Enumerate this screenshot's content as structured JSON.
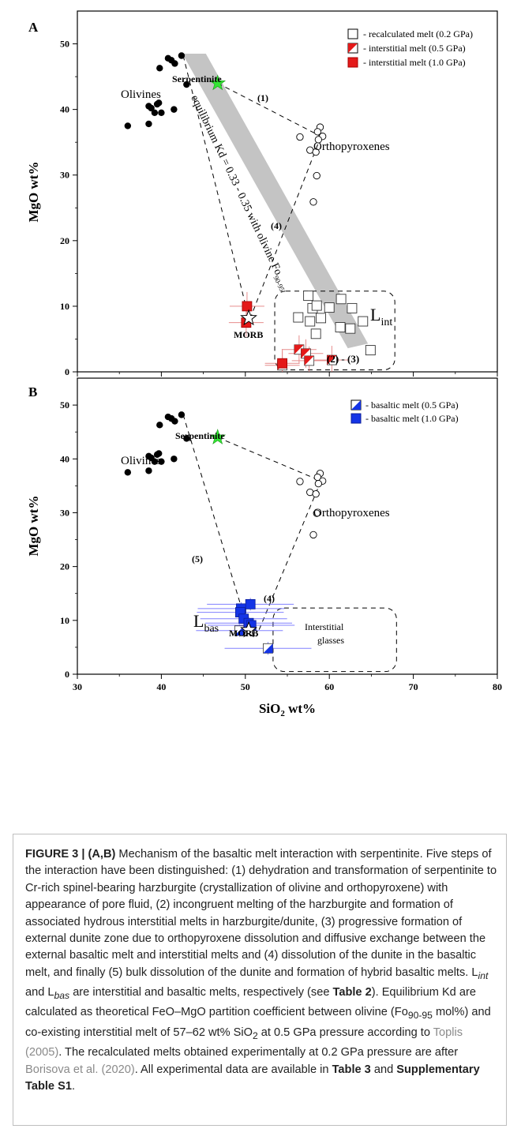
{
  "chart_data": [
    {
      "type": "scatter",
      "panel_label": "A",
      "xlabel": "",
      "ylabel": "MgO wt%",
      "xlim": [
        30,
        80
      ],
      "ylim": [
        0,
        55
      ],
      "yticks": [
        0,
        10,
        20,
        30,
        40,
        50
      ],
      "xticks": [],
      "legend_position": "top-right",
      "legend": [
        {
          "marker": "open-square",
          "label": "- recalculated melt (0.2 GPa)"
        },
        {
          "marker": "half-red-square",
          "label": "- interstitial melt (0.5 GPa)"
        },
        {
          "marker": "red-square",
          "label": "- interstitial melt (1.0 GPa)"
        }
      ],
      "series": [
        {
          "name": "Olivines",
          "marker": "black-circle",
          "points": [
            [
              36,
              37.5
            ],
            [
              38.5,
              37.8
            ],
            [
              38.5,
              40.5
            ],
            [
              38.8,
              40.2
            ],
            [
              39.2,
              39.5
            ],
            [
              39.5,
              40.8
            ],
            [
              39.7,
              41
            ],
            [
              40,
              39.5
            ],
            [
              41.5,
              40
            ],
            [
              39.8,
              46.3
            ],
            [
              40.8,
              47.8
            ],
            [
              41.2,
              47.5
            ],
            [
              41.6,
              47
            ],
            [
              42.4,
              48.2
            ],
            [
              43,
              43.8
            ]
          ]
        },
        {
          "name": "Orthopyroxenes",
          "marker": "open-circle",
          "points": [
            [
              56.5,
              35.8
            ],
            [
              58.9,
              37.3
            ],
            [
              58.6,
              36.6
            ],
            [
              59.2,
              35.9
            ],
            [
              58.7,
              35.4
            ],
            [
              57.7,
              33.8
            ],
            [
              58.4,
              33.5
            ],
            [
              58.5,
              29.9
            ],
            [
              58.1,
              25.9
            ]
          ]
        },
        {
          "name": "Serpentinite",
          "marker": "green-star",
          "points": [
            [
              46.7,
              44
            ]
          ]
        },
        {
          "name": "MORB",
          "marker": "open-star",
          "points": [
            [
              50.4,
              8.2
            ]
          ]
        },
        {
          "name": "recalculated melt (0.2 GPa)",
          "marker": "open-square",
          "points": [
            [
              56.3,
              8.3
            ],
            [
              57.5,
              11.6
            ],
            [
              58,
              9.7
            ],
            [
              58.5,
              10.1
            ],
            [
              59,
              8.2
            ],
            [
              58.4,
              5.8
            ],
            [
              57.7,
              7.7
            ],
            [
              61.4,
              11.1
            ],
            [
              60,
              9.8
            ],
            [
              62.7,
              9.7
            ],
            [
              62.5,
              6.6
            ],
            [
              61.3,
              6.8
            ],
            [
              64,
              7.7
            ],
            [
              64.9,
              3.3
            ]
          ]
        },
        {
          "name": "interstitial melt (0.5 GPa)",
          "marker": "half-red-square",
          "points": [
            [
              54.4,
              1
            ],
            [
              56.4,
              3.4
            ],
            [
              57.2,
              2.8
            ],
            [
              57.6,
              1.7
            ],
            [
              60.3,
              1.8
            ]
          ]
        },
        {
          "name": "interstitial melt (1.0 GPa)",
          "marker": "red-square",
          "points": [
            [
              50.2,
              10
            ],
            [
              50.1,
              7.5
            ],
            [
              54.4,
              1.3
            ]
          ]
        }
      ],
      "annotations": [
        "Olivines",
        "Orthopyroxenes",
        "Serpentinite",
        "MORB",
        "(1)",
        "(4)",
        "(2) - (3)",
        "L",
        "int",
        "equilibrium Kd = 0.33 - 0.35 with olivine Fo",
        "90-95"
      ]
    },
    {
      "type": "scatter",
      "panel_label": "B",
      "xlabel": "SiO₂ wt%",
      "ylabel": "MgO wt%",
      "xlim": [
        30,
        80
      ],
      "ylim": [
        0,
        55
      ],
      "yticks": [
        0,
        10,
        20,
        30,
        40,
        50
      ],
      "xticks": [
        30,
        40,
        50,
        60,
        70,
        80
      ],
      "legend_position": "top-right",
      "legend": [
        {
          "marker": "half-blue-square",
          "label": "- basaltic melt (0.5 GPa)"
        },
        {
          "marker": "blue-square",
          "label": "- basaltic melt (1.0 GPa)"
        }
      ],
      "series": [
        {
          "name": "Olivines",
          "marker": "black-circle",
          "points": [
            [
              36,
              37.5
            ],
            [
              38.5,
              37.8
            ],
            [
              38.5,
              40.5
            ],
            [
              38.8,
              40.2
            ],
            [
              39.2,
              39.5
            ],
            [
              39.5,
              40.8
            ],
            [
              39.7,
              41
            ],
            [
              40,
              39.5
            ],
            [
              41.5,
              40
            ],
            [
              39.8,
              46.3
            ],
            [
              40.8,
              47.8
            ],
            [
              41.2,
              47.5
            ],
            [
              41.6,
              47
            ],
            [
              42.4,
              48.2
            ],
            [
              43,
              43.8
            ]
          ]
        },
        {
          "name": "Orthopyroxenes",
          "marker": "open-circle",
          "points": [
            [
              56.5,
              35.8
            ],
            [
              58.9,
              37.3
            ],
            [
              58.6,
              36.6
            ],
            [
              59.2,
              35.9
            ],
            [
              58.7,
              35.4
            ],
            [
              57.7,
              33.8
            ],
            [
              58.4,
              33.5
            ],
            [
              58.5,
              29.9
            ],
            [
              58.1,
              25.9
            ]
          ]
        },
        {
          "name": "Serpentinite",
          "marker": "green-star",
          "points": [
            [
              46.7,
              44
            ]
          ]
        },
        {
          "name": "MORB",
          "marker": "open-star",
          "points": [
            [
              50.4,
              8.2
            ]
          ]
        },
        {
          "name": "basaltic melt (0.5 GPa)",
          "marker": "half-blue-square",
          "points": [
            [
              49.3,
              8.1
            ],
            [
              52.7,
              4.8
            ]
          ]
        },
        {
          "name": "basaltic melt (1.0 GPa)",
          "marker": "blue-square",
          "points": [
            [
              49.5,
              12.2
            ],
            [
              49.4,
              11.5
            ],
            [
              49.8,
              10.3
            ],
            [
              50.4,
              9.5
            ],
            [
              50.6,
              13
            ],
            [
              50.7,
              9.1
            ]
          ]
        }
      ],
      "annotations": [
        "Olivines",
        "Orthopyroxenes",
        "Serpentinite",
        "MORB",
        "(5)",
        "(4)",
        "L",
        "bas",
        "Interstitial",
        "glasses"
      ]
    }
  ],
  "caption": {
    "figure_label": "FIGURE 3 | (A,B)",
    "p1": " Mechanism of the basaltic melt interaction with serpentinite. Five steps of the interaction have been distinguished: (1) dehydration and transformation of serpentinite to Cr-rich spinel-bearing harzburgite (crystallization of olivine and orthopyroxene) with appearance of pore fluid, (2) incongruent melting of the harzburgite and formation of associated hydrous interstitial melts in harzburgite/dunite, (3) progressive formation of external dunite zone due to orthopyroxene dissolution and diffusive exchange between the external basaltic melt and interstitial melts and (4) dissolution of the dunite in the basaltic melt, and finally (5) bulk dissolution of the dunite and formation of hybrid basaltic melts. L",
    "int": "int",
    "p2": " and L",
    "bas": "bas",
    "p3": " are interstitial and basaltic melts, respectively (see ",
    "table2": "Table 2",
    "p4": "). Equilibrium Kd are calculated as theoretical FeO–MgO partition coefficient between olivine (Fo",
    "fo_sub": "90-95",
    "p5": " mol%) and co-existing interstitial melt of 57–62 wt% SiO",
    "sio2_sub": "2",
    "p6": " at 0.5 GPa pressure according to ",
    "ref1": "Toplis (2005)",
    "p7": ". The recalculated melts obtained experimentally at 0.2 GPa pressure are after ",
    "ref2": "Borisova et al. (2020)",
    "p8": ". All experimental data are available in ",
    "table3": "Table 3",
    "p9": " and ",
    "supp": "Supplementary Table S1",
    "p10": "."
  }
}
